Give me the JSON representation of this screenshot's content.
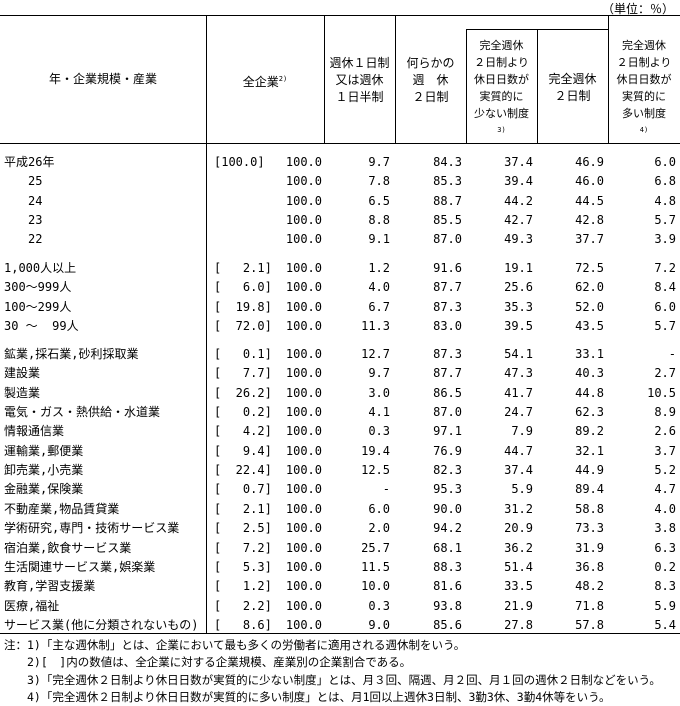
{
  "unit": "（単位：％）",
  "headers": {
    "row_label": "年・企業規模・産業",
    "all_companies": "全企業",
    "all_companies_note": "2)",
    "one_day": "週休１日制\n又は週休\n１日半制",
    "some_two_day": "何らかの\n週　休\n２日制",
    "fewer_than_full": "完全週休\n２日制より\n休日日数が\n実質的に\n少ない制度",
    "fewer_than_full_note": "3)",
    "full_two_day": "完全週休\n２日制",
    "more_than_full": "完全週休\n２日制より\n休日日数が\n実質的に\n多い制度",
    "more_than_full_note": "4)"
  },
  "groups": [
    {
      "rows": [
        {
          "label": "平成26年",
          "share": "[100.0]",
          "values": [
            "100.0",
            "9.7",
            "84.3",
            "37.4",
            "46.9",
            "6.0"
          ]
        },
        {
          "label": "　　25",
          "share": "",
          "values": [
            "100.0",
            "7.8",
            "85.3",
            "39.4",
            "46.0",
            "6.8"
          ]
        },
        {
          "label": "　　24",
          "share": "",
          "values": [
            "100.0",
            "6.5",
            "88.7",
            "44.2",
            "44.5",
            "4.8"
          ]
        },
        {
          "label": "　　23",
          "share": "",
          "values": [
            "100.0",
            "8.8",
            "85.5",
            "42.7",
            "42.8",
            "5.7"
          ]
        },
        {
          "label": "　　22",
          "share": "",
          "values": [
            "100.0",
            "9.1",
            "87.0",
            "49.3",
            "37.7",
            "3.9"
          ]
        }
      ]
    },
    {
      "rows": [
        {
          "label": "1,000人以上",
          "share": "[   2.1]",
          "values": [
            "100.0",
            "1.2",
            "91.6",
            "19.1",
            "72.5",
            "7.2"
          ]
        },
        {
          "label": "300～999人",
          "share": "[   6.0]",
          "values": [
            "100.0",
            "4.0",
            "87.7",
            "25.6",
            "62.0",
            "8.4"
          ]
        },
        {
          "label": "100～299人",
          "share": "[  19.8]",
          "values": [
            "100.0",
            "6.7",
            "87.3",
            "35.3",
            "52.0",
            "6.0"
          ]
        },
        {
          "label": "30 ～  99人",
          "share": "[  72.0]",
          "values": [
            "100.0",
            "11.3",
            "83.0",
            "39.5",
            "43.5",
            "5.7"
          ]
        }
      ]
    },
    {
      "rows": [
        {
          "label": "鉱業,採石業,砂利採取業",
          "share": "[   0.1]",
          "values": [
            "100.0",
            "12.7",
            "87.3",
            "54.1",
            "33.1",
            "-"
          ]
        },
        {
          "label": "建設業",
          "share": "[   7.7]",
          "values": [
            "100.0",
            "9.7",
            "87.7",
            "47.3",
            "40.3",
            "2.7"
          ]
        },
        {
          "label": "製造業",
          "share": "[  26.2]",
          "values": [
            "100.0",
            "3.0",
            "86.5",
            "41.7",
            "44.8",
            "10.5"
          ]
        },
        {
          "label": "電気・ガス・熱供給・水道業",
          "share": "[   0.2]",
          "values": [
            "100.0",
            "4.1",
            "87.0",
            "24.7",
            "62.3",
            "8.9"
          ]
        },
        {
          "label": "情報通信業",
          "share": "[   4.2]",
          "values": [
            "100.0",
            "0.3",
            "97.1",
            "7.9",
            "89.2",
            "2.6"
          ]
        },
        {
          "label": "運輸業,郵便業",
          "share": "[   9.4]",
          "values": [
            "100.0",
            "19.4",
            "76.9",
            "44.7",
            "32.1",
            "3.7"
          ]
        },
        {
          "label": "卸売業,小売業",
          "share": "[  22.4]",
          "values": [
            "100.0",
            "12.5",
            "82.3",
            "37.4",
            "44.9",
            "5.2"
          ]
        },
        {
          "label": "金融業,保険業",
          "share": "[   0.7]",
          "values": [
            "100.0",
            "-",
            "95.3",
            "5.9",
            "89.4",
            "4.7"
          ]
        },
        {
          "label": "不動産業,物品賃貸業",
          "share": "[   2.1]",
          "values": [
            "100.0",
            "6.0",
            "90.0",
            "31.2",
            "58.8",
            "4.0"
          ]
        },
        {
          "label": "学術研究,専門・技術サービス業",
          "share": "[   2.5]",
          "values": [
            "100.0",
            "2.0",
            "94.2",
            "20.9",
            "73.3",
            "3.8"
          ]
        },
        {
          "label": "宿泊業,飲食サービス業",
          "share": "[   7.2]",
          "values": [
            "100.0",
            "25.7",
            "68.1",
            "36.2",
            "31.9",
            "6.3"
          ]
        },
        {
          "label": "生活関連サービス業,娯楽業",
          "share": "[   5.3]",
          "values": [
            "100.0",
            "11.5",
            "88.3",
            "51.4",
            "36.8",
            "0.2"
          ]
        },
        {
          "label": "教育,学習支援業",
          "share": "[   1.2]",
          "values": [
            "100.0",
            "10.0",
            "81.6",
            "33.5",
            "48.2",
            "8.3"
          ]
        },
        {
          "label": "医療,福祉",
          "share": "[   2.2]",
          "values": [
            "100.0",
            "0.3",
            "93.8",
            "21.9",
            "71.8",
            "5.9"
          ]
        },
        {
          "label": "サービス業(他に分類されないもの)",
          "share": "[   8.6]",
          "values": [
            "100.0",
            "9.0",
            "85.6",
            "27.8",
            "57.8",
            "5.4"
          ]
        }
      ]
    }
  ],
  "notes": [
    "注：1)「主な週休制」とは、企業において最も多くの労働者に適用される週休制をいう。",
    "　　2)[　]内の数値は、全企業に対する企業規模、産業別の企業割合である。",
    "　　3)「完全週休２日制より休日日数が実質的に少ない制度」とは、月３回、隔週、月２回、月１回の週休２日制などをいう。",
    "　　4)「完全週休２日制より休日日数が実質的に多い制度」とは、月1回以上週休3日制、3勤3休、3勤4休等をいう。"
  ]
}
